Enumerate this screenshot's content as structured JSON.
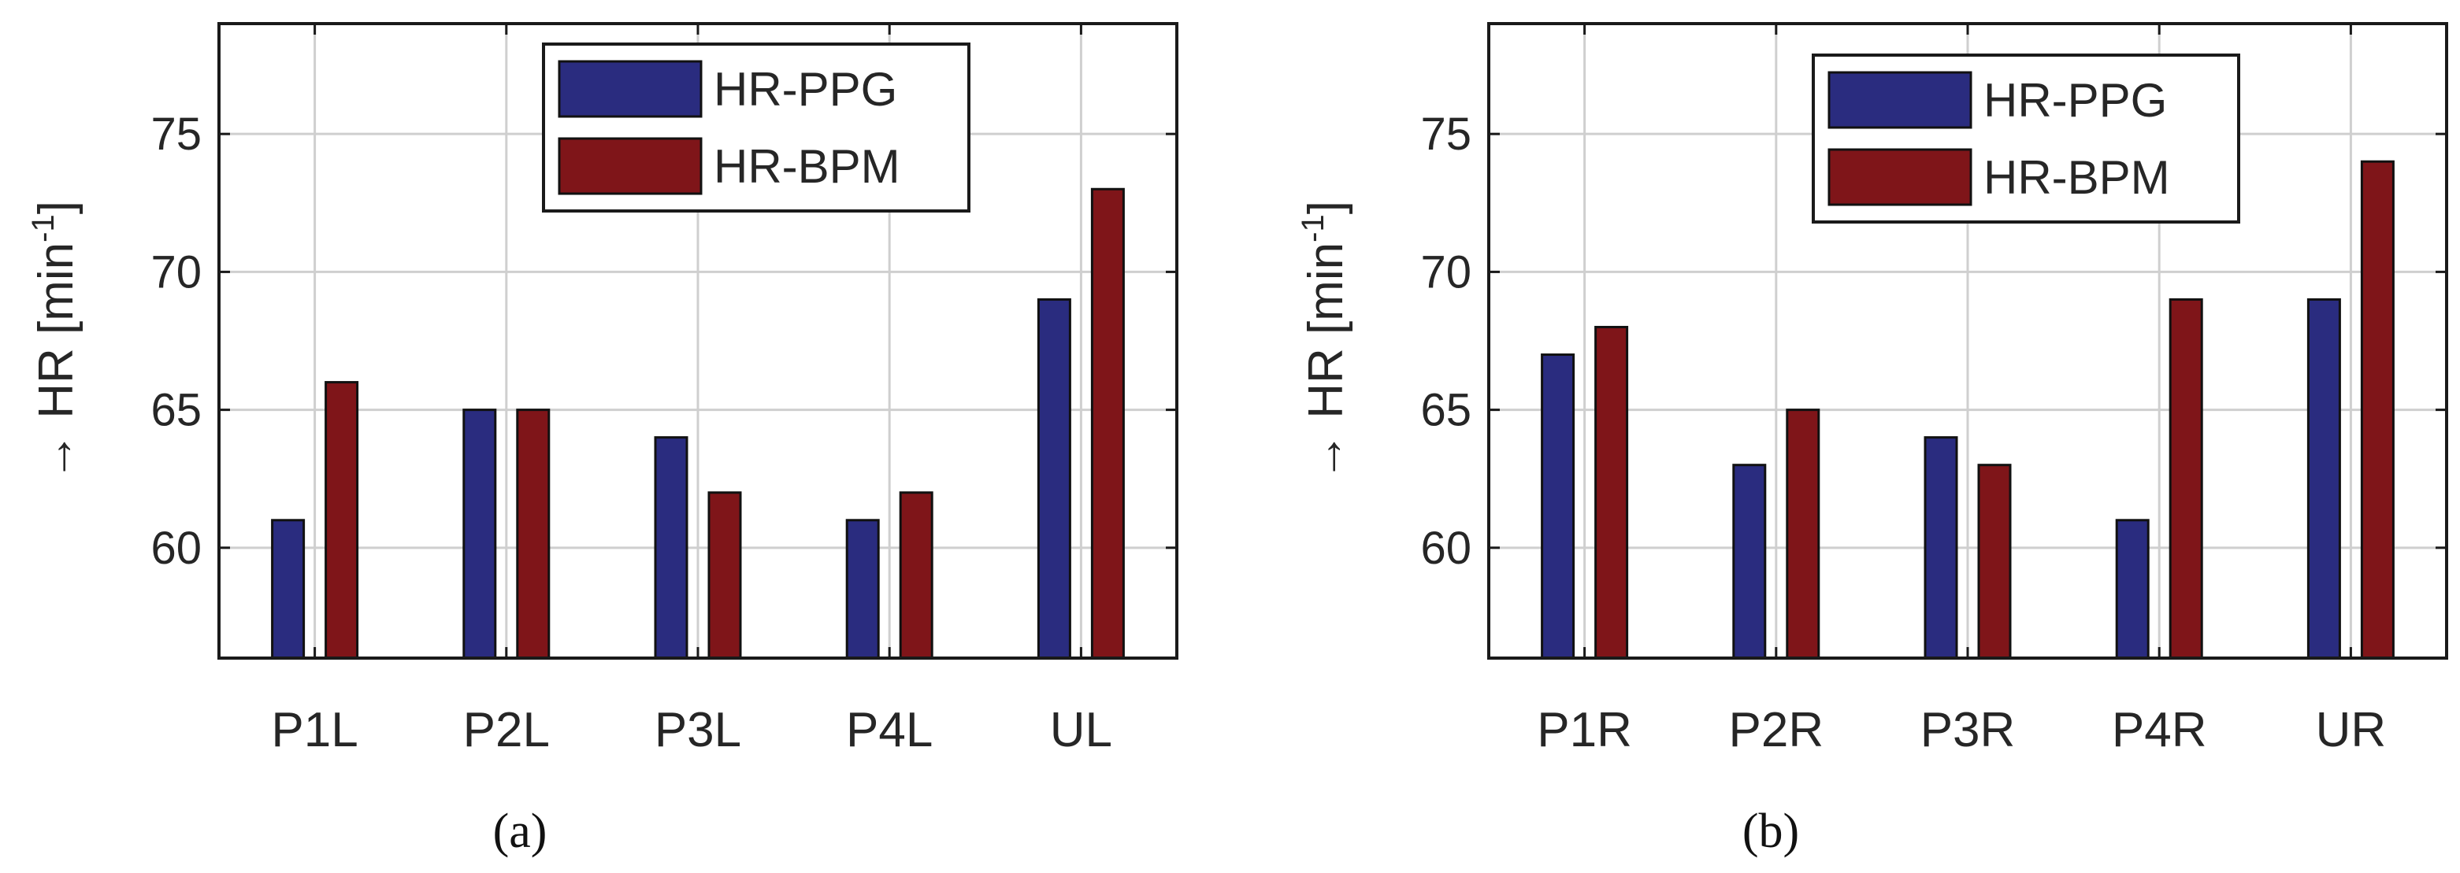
{
  "chart_data": [
    {
      "type": "bar",
      "panel_label": "(a)",
      "categories": [
        "P1L",
        "P2L",
        "P3L",
        "P4L",
        "UL"
      ],
      "series": [
        {
          "name": "HR-PPG",
          "color": "#2a2c7f",
          "values": [
            61,
            65,
            64,
            61,
            69
          ]
        },
        {
          "name": "HR-BPM",
          "color": "#7f1519",
          "values": [
            66,
            65,
            62,
            62,
            73
          ]
        }
      ],
      "ylabel_prefix": "→ HR [min",
      "ylabel_sup": "-1",
      "ylabel_suffix": "]",
      "ylim": [
        56,
        79
      ],
      "yticks": [
        60,
        65,
        70,
        75
      ],
      "grid": true,
      "legend_position": "top-right"
    },
    {
      "type": "bar",
      "panel_label": "(b)",
      "categories": [
        "P1R",
        "P2R",
        "P3R",
        "P4R",
        "UR"
      ],
      "series": [
        {
          "name": "HR-PPG",
          "color": "#2a2c7f",
          "values": [
            67,
            63,
            64,
            61,
            69
          ]
        },
        {
          "name": "HR-BPM",
          "color": "#7f1519",
          "values": [
            68,
            65,
            63,
            69,
            74
          ]
        }
      ],
      "ylabel_prefix": "→ HR [min",
      "ylabel_sup": "-1",
      "ylabel_suffix": "]",
      "ylim": [
        56,
        79
      ],
      "yticks": [
        60,
        65,
        70,
        75
      ],
      "grid": true,
      "legend_position": "top-right"
    }
  ]
}
